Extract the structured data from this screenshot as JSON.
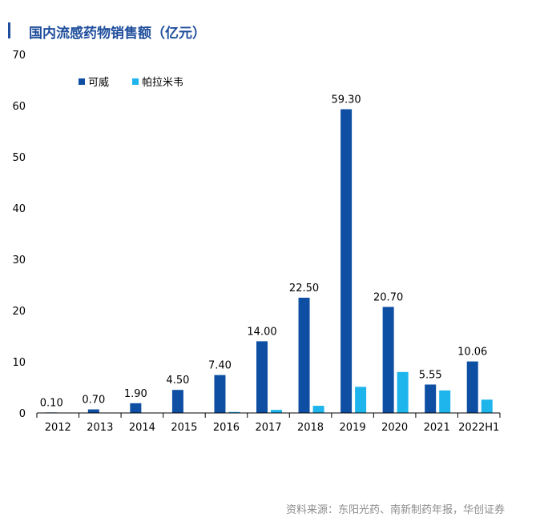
{
  "title": "国内流感药物销售额（亿元）",
  "source": "资料来源：东阳光药、南新制药年报，华创证券",
  "colors": {
    "accent": "#1f4e9c",
    "series1": "#0e4fa3",
    "series2": "#1eb5ec",
    "source_text": "#8c8c8c"
  },
  "chart_data": {
    "type": "bar",
    "categories": [
      "2012",
      "2013",
      "2014",
      "2015",
      "2016",
      "2017",
      "2018",
      "2019",
      "2020",
      "2021",
      "2022H1"
    ],
    "series": [
      {
        "name": "可威",
        "values": [
          0.1,
          0.7,
          1.9,
          4.5,
          7.4,
          14.0,
          22.5,
          59.3,
          20.7,
          5.55,
          10.06
        ],
        "labels": [
          "0.10",
          "0.70",
          "1.90",
          "4.50",
          "7.40",
          "14.00",
          "22.50",
          "59.30",
          "20.70",
          "5.55",
          "10.06"
        ]
      },
      {
        "name": "帕拉米韦",
        "values": [
          0,
          0,
          0,
          0,
          0.2,
          0.6,
          1.4,
          5.1,
          8.0,
          4.4,
          2.6
        ]
      }
    ],
    "ylim": [
      0,
      70
    ],
    "yticks": [
      0,
      10,
      20,
      30,
      40,
      50,
      60,
      70
    ],
    "legend": "top-left",
    "grid": false
  }
}
